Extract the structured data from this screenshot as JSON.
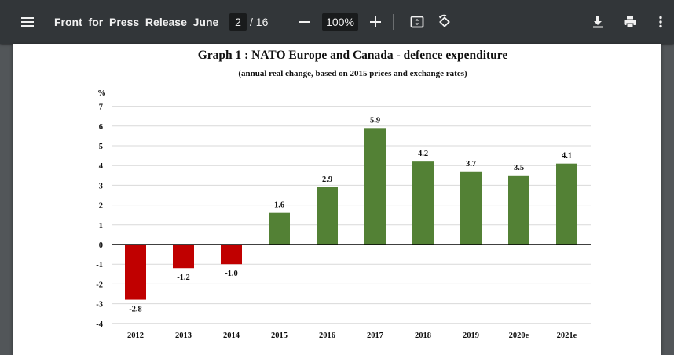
{
  "toolbar": {
    "menu_icon": "menu-icon",
    "document_title": "Front_for_Press_Release_June...",
    "current_page": "2",
    "page_separator": "/",
    "total_pages": "16",
    "zoom_level": "100%",
    "icons": [
      "menu-icon",
      "zoom-out-icon",
      "zoom-in-icon",
      "fit-page-icon",
      "rotate-icon",
      "download-icon",
      "print-icon",
      "more-vert-icon"
    ]
  },
  "chart_data": {
    "type": "bar",
    "title": "Graph 1 : NATO Europe and Canada - defence expenditure",
    "subtitle": "(annual real change, based on 2015 prices and exchange rates)",
    "ylabel": "%",
    "xlabel": "",
    "ylim": [
      -4,
      7
    ],
    "yticks": [
      7,
      6,
      5,
      4,
      3,
      2,
      1,
      0,
      -1,
      -2,
      -3,
      -4
    ],
    "grid": true,
    "categories": [
      "2012",
      "2013",
      "2014",
      "2015",
      "2016",
      "2017",
      "2018",
      "2019",
      "2020e",
      "2021e"
    ],
    "values": [
      -2.8,
      -1.2,
      -1.0,
      1.6,
      2.9,
      5.9,
      4.2,
      3.7,
      3.5,
      4.1
    ],
    "data_labels": [
      "-2.8",
      "-1.2",
      "-1.0",
      "1.6",
      "2.9",
      "5.9",
      "4.2",
      "3.7",
      "3.5",
      "4.1"
    ],
    "colors": {
      "negative": "#c00000",
      "positive": "#538135"
    }
  }
}
